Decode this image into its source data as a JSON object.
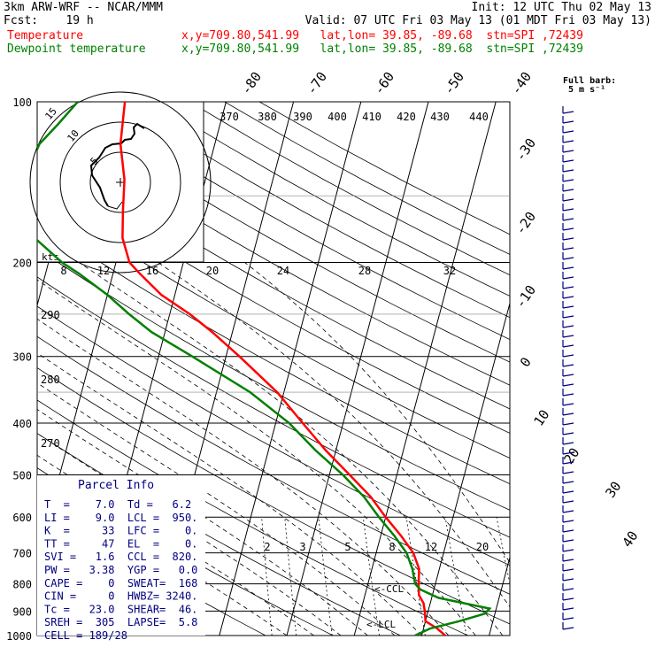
{
  "header": {
    "title": "3km ARW-WRF -- NCAR/MMM",
    "init": "Init: 12 UTC Thu 02 May 13",
    "fcst": "Fcst:    19 h",
    "valid": "Valid: 07 UTC Fri 03 May 13 (01 MDT Fri 03 May 13)",
    "temp_label": "Temperature",
    "dew_label": "Dewpoint temperature",
    "temp_info": "x,y=709.80,541.99   lat,lon= 39.85, -89.68  stn=SPI ,72439",
    "dew_info": "x,y=709.80,541.99   lat,lon= 39.85, -89.68  stn=SPI ,72439",
    "temp_color": "#ff0000",
    "dew_color": "#008000"
  },
  "barb_legend": {
    "line1": "Full barb:",
    "line2": "5 m s⁻¹"
  },
  "hodograph": {
    "kts_label": "kts",
    "ring_labels": [
      "5",
      "10",
      "15"
    ]
  },
  "parcel_info": {
    "title": "Parcel Info",
    "lines": [
      "T  =    7.0  Td =   6.2",
      "LI =    9.0  LCL =  950.",
      "K  =     33  LFC =    0.",
      "TT =     47  EL  =    0.",
      "SVI =   1.6  CCL =  820.",
      "PW =   3.38  YGP =   0.0",
      "CAPE =    0  SWEAT=  168",
      "CIN =     0  HWBZ= 3240.",
      "Tc =   23.0  SHEAR=  46.",
      "SREH =  305  LAPSE=  5.8",
      "CELL = 189/28"
    ]
  },
  "markers": {
    "ccl": "CCL",
    "lcl": "LCL"
  },
  "chart_data": {
    "type": "line",
    "yscale": "log",
    "pressure_levels": [
      100,
      200,
      300,
      400,
      500,
      600,
      700,
      800,
      900,
      1000
    ],
    "isotherm_labels": [
      -80,
      -70,
      -60,
      -50,
      -40,
      -30,
      -20,
      -10,
      0,
      10,
      20,
      30,
      40
    ],
    "theta_labels": [
      370,
      380,
      390,
      400,
      410,
      420,
      430,
      440
    ],
    "theta_left_labels": [
      290,
      280,
      270
    ],
    "mixing_ratio_labels": [
      2,
      3,
      5,
      8,
      12,
      20
    ],
    "hodo_speed_labels": [
      8,
      12,
      16,
      20,
      24,
      28,
      32
    ],
    "series": [
      {
        "name": "Temperature",
        "color": "#ff0000",
        "points": [
          [
            1000,
            13.5
          ],
          [
            970,
            12
          ],
          [
            940,
            10
          ],
          [
            900,
            9.5
          ],
          [
            870,
            9
          ],
          [
            840,
            8
          ],
          [
            800,
            7.5
          ],
          [
            750,
            7
          ],
          [
            700,
            5.5
          ],
          [
            650,
            3
          ],
          [
            600,
            0
          ],
          [
            550,
            -3
          ],
          [
            500,
            -7
          ],
          [
            450,
            -11.5
          ],
          [
            400,
            -16
          ],
          [
            350,
            -21
          ],
          [
            300,
            -28
          ],
          [
            270,
            -33
          ],
          [
            250,
            -37
          ],
          [
            230,
            -42
          ],
          [
            210,
            -46
          ],
          [
            200,
            -48
          ],
          [
            180,
            -50
          ],
          [
            160,
            -51
          ],
          [
            140,
            -52
          ],
          [
            120,
            -54
          ],
          [
            100,
            -55
          ]
        ]
      },
      {
        "name": "Dewpoint temperature",
        "color": "#008000",
        "points": [
          [
            1000,
            9
          ],
          [
            970,
            11
          ],
          [
            940,
            15
          ],
          [
            910,
            18.5
          ],
          [
            890,
            19
          ],
          [
            870,
            15
          ],
          [
            850,
            11
          ],
          [
            820,
            8
          ],
          [
            800,
            7
          ],
          [
            750,
            6
          ],
          [
            700,
            4.5
          ],
          [
            650,
            2
          ],
          [
            600,
            -1
          ],
          [
            550,
            -4
          ],
          [
            500,
            -8
          ],
          [
            450,
            -13
          ],
          [
            400,
            -18
          ],
          [
            350,
            -25
          ],
          [
            300,
            -35
          ],
          [
            270,
            -42
          ],
          [
            250,
            -46
          ],
          [
            230,
            -50
          ],
          [
            210,
            -55
          ],
          [
            200,
            -58
          ],
          [
            180,
            -63
          ],
          [
            160,
            -65
          ],
          [
            140,
            -67
          ],
          [
            120,
            -66
          ],
          [
            110,
            -64
          ],
          [
            100,
            -62
          ]
        ]
      }
    ]
  }
}
